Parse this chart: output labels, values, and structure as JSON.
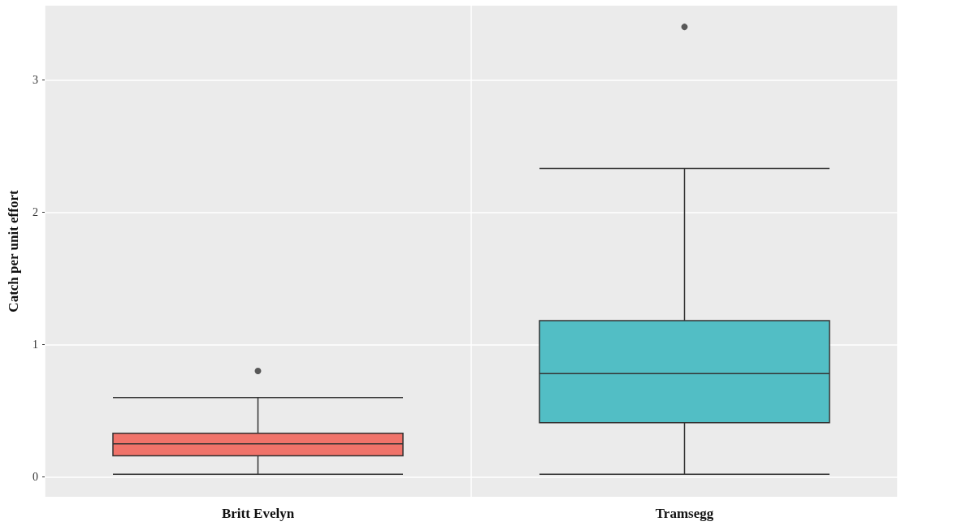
{
  "chart_data": {
    "type": "box",
    "ylabel": "Catch per unit effort",
    "categories": [
      "Britt Evelyn",
      "Tramsegg"
    ],
    "colors": [
      "#f0736a",
      "#52bec5"
    ],
    "boxes": [
      {
        "low": 0.02,
        "q1": 0.16,
        "median": 0.25,
        "q3": 0.33,
        "high": 0.6,
        "outliers": [
          0.8
        ]
      },
      {
        "low": 0.02,
        "q1": 0.41,
        "median": 0.78,
        "q3": 1.18,
        "high": 2.33,
        "outliers": [
          3.4
        ]
      }
    ],
    "ylim": [
      -0.15,
      3.56
    ],
    "yticks": [
      0,
      1,
      2,
      3
    ],
    "grid": true
  }
}
